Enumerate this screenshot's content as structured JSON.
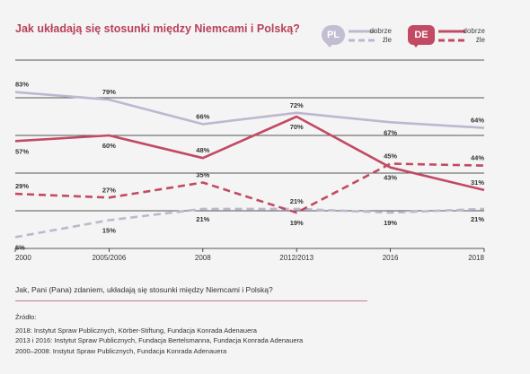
{
  "title": "Jak układają się stosunki między Niemcami i Polską?",
  "legend": {
    "pl_badge": "PL",
    "de_badge": "DE",
    "pl_good": "dobrze",
    "pl_bad": "źle",
    "de_good": "dobrze",
    "de_bad": "źle"
  },
  "colors": {
    "pl": "#bdb7cf",
    "de": "#c24a63",
    "title": "#b8405a",
    "grid": "#222222",
    "background": "#f4f4f4"
  },
  "chart_data": {
    "type": "line",
    "x": [
      "2000",
      "2005/2006",
      "2008",
      "2012/2013",
      "2016",
      "2018"
    ],
    "ylim": [
      0,
      100
    ],
    "grid": true,
    "legend_position": "top-right",
    "series": [
      {
        "name": "dobrze",
        "country": "PL",
        "style": "solid",
        "values": [
          83,
          79,
          66,
          72,
          67,
          64
        ],
        "labels": [
          "83%",
          "79%",
          "66%",
          "72%",
          "67%",
          "64%"
        ]
      },
      {
        "name": "źle",
        "country": "PL",
        "style": "dashed",
        "values": [
          6,
          15,
          21,
          21,
          19,
          21
        ],
        "labels": [
          "6%",
          "15%",
          "21%",
          "21%",
          "19%",
          "21%"
        ]
      },
      {
        "name": "dobrze",
        "country": "DE",
        "style": "solid",
        "values": [
          57,
          60,
          48,
          70,
          43,
          31
        ],
        "labels": [
          "57%",
          "60%",
          "48%",
          "70%",
          "43%",
          "31%"
        ]
      },
      {
        "name": "źle",
        "country": "DE",
        "style": "dashed",
        "values": [
          29,
          27,
          35,
          19,
          45,
          44
        ],
        "labels": [
          "29%",
          "27%",
          "35%",
          "19%",
          "45%",
          "44%"
        ]
      }
    ]
  },
  "question": "Jak, Pani (Pana) zdaniem, układają się stosunki między Niemcami i Polską?",
  "sources": {
    "heading": "Źródło:",
    "lines": [
      "2018: Instytut Spraw Publicznych, Körber-Stiftung, Fundacja Konrada Adenauera",
      "2013 i 2016: Instytut Spraw Publicznych, Fundacja Bertelsmanna, Fundacja Konrada Adenauera",
      "2000–2008: Instytut Spraw Publicznych, Fundacja Konrada Adenauera"
    ]
  }
}
